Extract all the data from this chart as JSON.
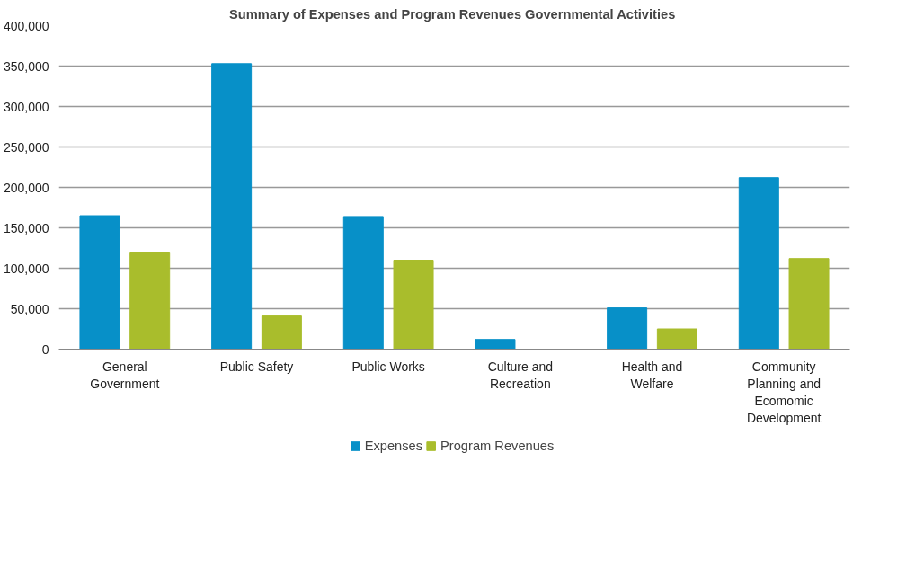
{
  "chart_data": {
    "type": "bar",
    "title": "Summary of Expenses and Program Revenues  Governmental Activities",
    "categories": [
      "General Government",
      "Public Safety",
      "Public Works",
      "Culture and Recreation",
      "Health and Welfare",
      "Community Planning and Ecomomic Development"
    ],
    "series": [
      {
        "name": "Expenses",
        "color": "#0790c8",
        "values": [
          165000,
          353000,
          164000,
          12000,
          51000,
          212000
        ]
      },
      {
        "name": "Program Revenues",
        "color": "#a9bd2c",
        "values": [
          120000,
          41000,
          110000,
          0,
          25000,
          112000
        ]
      }
    ],
    "ylim": [
      0,
      400000
    ],
    "yticks": [
      {
        "value": 0,
        "label": "0"
      },
      {
        "value": 50000,
        "label": "50,000"
      },
      {
        "value": 100000,
        "label": "100,000"
      },
      {
        "value": 150000,
        "label": "150,000"
      },
      {
        "value": 200000,
        "label": "200,000"
      },
      {
        "value": 250000,
        "label": "250,000"
      },
      {
        "value": 300000,
        "label": "300,000"
      },
      {
        "value": 350000,
        "label": "350,000"
      },
      {
        "value": 400000,
        "label": "400,000"
      }
    ],
    "grid": "y",
    "legend": "bottom"
  }
}
